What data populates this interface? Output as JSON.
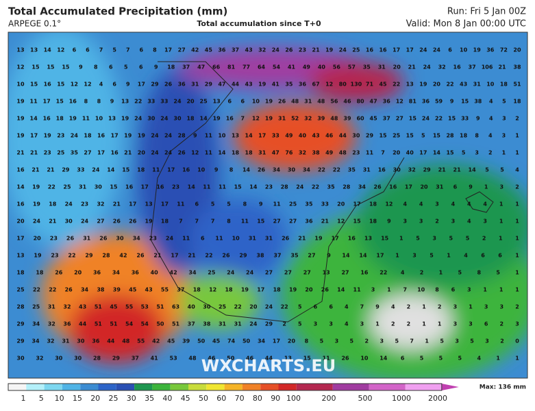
{
  "header": {
    "title": "Total Accumulated Precipitation (mm)",
    "model": "ARPEGE 0.1°",
    "subtitle": "Total accumulation since T+0",
    "run": "Run: Fri 5 Jan 00Z",
    "valid": "Valid: Mon 8 Jan 00:00 UTC"
  },
  "watermark": "WXCHARTS.EU",
  "max_label": "Max: 136 mm",
  "colorbar": {
    "labels": [
      "1",
      "5",
      "10",
      "15",
      "20",
      "25",
      "30",
      "35",
      "40",
      "45",
      "50",
      "60",
      "70",
      "80",
      "90",
      "100",
      "200",
      "500",
      "1000",
      "2000"
    ],
    "colors": [
      "#f5f5f5",
      "#b4f0fa",
      "#7dd7f0",
      "#50b4e6",
      "#3c8cd2",
      "#2d64c8",
      "#2a50b4",
      "#1e9650",
      "#3cb43c",
      "#78c83c",
      "#c8dc3c",
      "#f0e632",
      "#f5b428",
      "#f08228",
      "#e65028",
      "#d22828",
      "#b42850",
      "#a03ca0",
      "#d264c8",
      "#f0a0f0"
    ]
  },
  "grid": [
    [
      13,
      13,
      14,
      12,
      6,
      6,
      7,
      5,
      7,
      6,
      8,
      17,
      27,
      42,
      45,
      36,
      37,
      43,
      32,
      24,
      26,
      23,
      21,
      19,
      24,
      25,
      16,
      16,
      17,
      17,
      24,
      24,
      6,
      10,
      19,
      36,
      72,
      20
    ],
    [
      12,
      15,
      15,
      15,
      9,
      8,
      6,
      5,
      6,
      9,
      18,
      37,
      47,
      66,
      81,
      77,
      64,
      54,
      41,
      49,
      40,
      56,
      57,
      35,
      31,
      20,
      21,
      24,
      32,
      16,
      37,
      106,
      21,
      38
    ],
    [
      10,
      15,
      16,
      15,
      12,
      12,
      4,
      6,
      9,
      17,
      29,
      26,
      36,
      31,
      29,
      47,
      44,
      43,
      19,
      41,
      35,
      36,
      67,
      12,
      80,
      130,
      71,
      45,
      22,
      13,
      19,
      20,
      22,
      43,
      31,
      10,
      18,
      51
    ],
    [
      19,
      11,
      17,
      15,
      16,
      8,
      8,
      9,
      13,
      22,
      33,
      33,
      24,
      20,
      25,
      13,
      6,
      6,
      10,
      19,
      26,
      48,
      31,
      48,
      56,
      46,
      80,
      47,
      36,
      12,
      81,
      36,
      59,
      9,
      15,
      38,
      4,
      5,
      18
    ],
    [
      19,
      14,
      16,
      18,
      19,
      11,
      10,
      13,
      19,
      24,
      30,
      24,
      30,
      18,
      14,
      19,
      16,
      7,
      12,
      19,
      31,
      52,
      32,
      39,
      48,
      39,
      60,
      45,
      37,
      27,
      15,
      24,
      22,
      15,
      33,
      9,
      4,
      3,
      2
    ],
    [
      19,
      17,
      19,
      23,
      24,
      18,
      16,
      17,
      19,
      19,
      24,
      24,
      28,
      9,
      11,
      10,
      13,
      14,
      17,
      33,
      49,
      40,
      43,
      46,
      44,
      30,
      29,
      15,
      25,
      15,
      5,
      15,
      28,
      18,
      8,
      4,
      3,
      1
    ],
    [
      21,
      21,
      23,
      25,
      35,
      27,
      17,
      16,
      21,
      20,
      24,
      24,
      26,
      12,
      11,
      14,
      18,
      18,
      31,
      47,
      76,
      32,
      38,
      49,
      48,
      23,
      11,
      7,
      20,
      40,
      17,
      14,
      15,
      5,
      3,
      2,
      1,
      1
    ],
    [
      16,
      21,
      21,
      29,
      33,
      24,
      14,
      15,
      18,
      11,
      17,
      16,
      10,
      9,
      8,
      14,
      26,
      34,
      30,
      34,
      22,
      22,
      35,
      31,
      16,
      30,
      32,
      29,
      21,
      21,
      14,
      5,
      5,
      4
    ],
    [
      14,
      19,
      22,
      25,
      31,
      30,
      15,
      16,
      17,
      16,
      23,
      14,
      11,
      11,
      15,
      14,
      23,
      28,
      24,
      22,
      35,
      28,
      34,
      26,
      16,
      17,
      20,
      31,
      6,
      9,
      1,
      3,
      2
    ],
    [
      16,
      19,
      18,
      24,
      23,
      32,
      21,
      17,
      13,
      17,
      11,
      6,
      5,
      5,
      8,
      9,
      11,
      25,
      35,
      33,
      20,
      17,
      18,
      12,
      4,
      4,
      3,
      4,
      4,
      4,
      1,
      1
    ],
    [
      20,
      24,
      21,
      30,
      24,
      27,
      26,
      26,
      19,
      18,
      7,
      7,
      7,
      8,
      11,
      15,
      27,
      27,
      36,
      21,
      12,
      15,
      18,
      9,
      3,
      3,
      2,
      3,
      4,
      3,
      1,
      1
    ],
    [
      17,
      20,
      23,
      26,
      31,
      26,
      30,
      34,
      23,
      24,
      11,
      6,
      11,
      10,
      31,
      31,
      26,
      21,
      19,
      17,
      16,
      13,
      15,
      1,
      5,
      3,
      5,
      5,
      2,
      1,
      1
    ],
    [
      13,
      19,
      23,
      22,
      29,
      28,
      42,
      26,
      21,
      17,
      21,
      22,
      26,
      29,
      38,
      37,
      35,
      27,
      9,
      14,
      14,
      17,
      1,
      3,
      5,
      1,
      4,
      6,
      6,
      1
    ],
    [
      18,
      18,
      26,
      20,
      36,
      34,
      36,
      40,
      42,
      34,
      25,
      24,
      24,
      27,
      27,
      27,
      13,
      27,
      16,
      22,
      4,
      2,
      1,
      5,
      8,
      5,
      1
    ],
    [
      25,
      22,
      22,
      26,
      34,
      38,
      39,
      45,
      43,
      55,
      37,
      18,
      12,
      18,
      19,
      17,
      18,
      19,
      20,
      26,
      14,
      11,
      3,
      1,
      7,
      10,
      8,
      6,
      3,
      1,
      1,
      1
    ],
    [
      28,
      25,
      31,
      32,
      43,
      51,
      45,
      55,
      53,
      51,
      63,
      40,
      30,
      25,
      22,
      20,
      24,
      22,
      5,
      6,
      6,
      4,
      7,
      9,
      4,
      2,
      1,
      2,
      3,
      1,
      3,
      3,
      2
    ],
    [
      29,
      34,
      32,
      36,
      44,
      51,
      51,
      54,
      54,
      50,
      51,
      37,
      38,
      31,
      31,
      24,
      29,
      2,
      5,
      3,
      3,
      4,
      3,
      1,
      2,
      2,
      1,
      1,
      3,
      3,
      6,
      2,
      3
    ],
    [
      29,
      34,
      32,
      31,
      30,
      36,
      44,
      48,
      55,
      42,
      45,
      39,
      50,
      45,
      74,
      50,
      34,
      17,
      20,
      8,
      5,
      3,
      5,
      2,
      3,
      5,
      7,
      1,
      5,
      3,
      5,
      3,
      2,
      0
    ],
    [
      30,
      32,
      30,
      30,
      28,
      29,
      37,
      41,
      53,
      48,
      46,
      50,
      46,
      44,
      13,
      15,
      11,
      26,
      10,
      14,
      6,
      5,
      5,
      5,
      4,
      1,
      1
    ]
  ]
}
